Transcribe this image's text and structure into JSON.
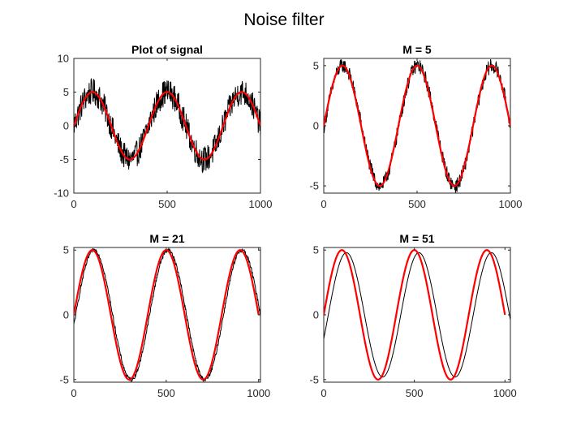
{
  "figure": {
    "title": "Noise filter"
  },
  "chart_data": [
    {
      "type": "line",
      "title": "Plot of signal",
      "xlim": [
        0,
        1000
      ],
      "ylim": [
        -10,
        10
      ],
      "xticks": [
        "0",
        "500",
        "1000"
      ],
      "yticks": [
        "10",
        "5",
        "0",
        "-5",
        "-10"
      ],
      "grid": false,
      "series": [
        {
          "color": "#000000",
          "signal": "sine",
          "amplitude": 5,
          "period": 400,
          "phase_shift": 0,
          "noise_amplitude": 2,
          "x_range": [
            0,
            1000
          ]
        },
        {
          "color": "#ff0000",
          "signal": "sine",
          "amplitude": 5,
          "period": 400,
          "phase_shift": 0,
          "x_range": [
            0,
            1000
          ]
        }
      ]
    },
    {
      "type": "line",
      "title": "M = 5",
      "xlim": [
        0,
        1000
      ],
      "ylim": [
        -5.6,
        5.6
      ],
      "xticks": [
        "0",
        "500",
        "1000"
      ],
      "yticks": [
        "5",
        "0",
        "-5"
      ],
      "grid": false,
      "series": [
        {
          "color": "#000000",
          "signal": "sine",
          "amplitude": 5,
          "period": 400,
          "phase_shift": 2,
          "noise_amplitude": 0.6,
          "x_range": [
            0,
            1000
          ]
        },
        {
          "color": "#ff0000",
          "signal": "sine",
          "amplitude": 5,
          "period": 400,
          "phase_shift": 0,
          "x_range": [
            0,
            1000
          ]
        }
      ]
    },
    {
      "type": "line",
      "title": "M = 21",
      "xlim": [
        0,
        1010
      ],
      "ylim": [
        -5.2,
        5.2
      ],
      "xticks": [
        "0",
        "500",
        "1000"
      ],
      "yticks": [
        "5",
        "0",
        "-5"
      ],
      "grid": false,
      "series": [
        {
          "color": "#000000",
          "signal": "sine",
          "amplitude": 5,
          "period": 400,
          "phase_shift": 10,
          "noise_amplitude": 0.15,
          "x_range": [
            0,
            1010
          ]
        },
        {
          "color": "#ff0000",
          "signal": "sine",
          "amplitude": 5,
          "period": 400,
          "phase_shift": 0,
          "x_range": [
            0,
            1000
          ]
        }
      ]
    },
    {
      "type": "line",
      "title": "M = 51",
      "xlim": [
        0,
        1030
      ],
      "ylim": [
        -5.2,
        5.2
      ],
      "xticks": [
        "0",
        "500",
        "1000"
      ],
      "yticks": [
        "5",
        "0",
        "-5"
      ],
      "grid": false,
      "series": [
        {
          "color": "#000000",
          "signal": "sine",
          "amplitude": 4.8,
          "period": 400,
          "phase_shift": 25,
          "noise_amplitude": 0,
          "x_range": [
            0,
            1030
          ]
        },
        {
          "color": "#ff0000",
          "signal": "sine",
          "amplitude": 5,
          "period": 400,
          "phase_shift": 0,
          "x_range": [
            0,
            1000
          ]
        }
      ]
    }
  ]
}
